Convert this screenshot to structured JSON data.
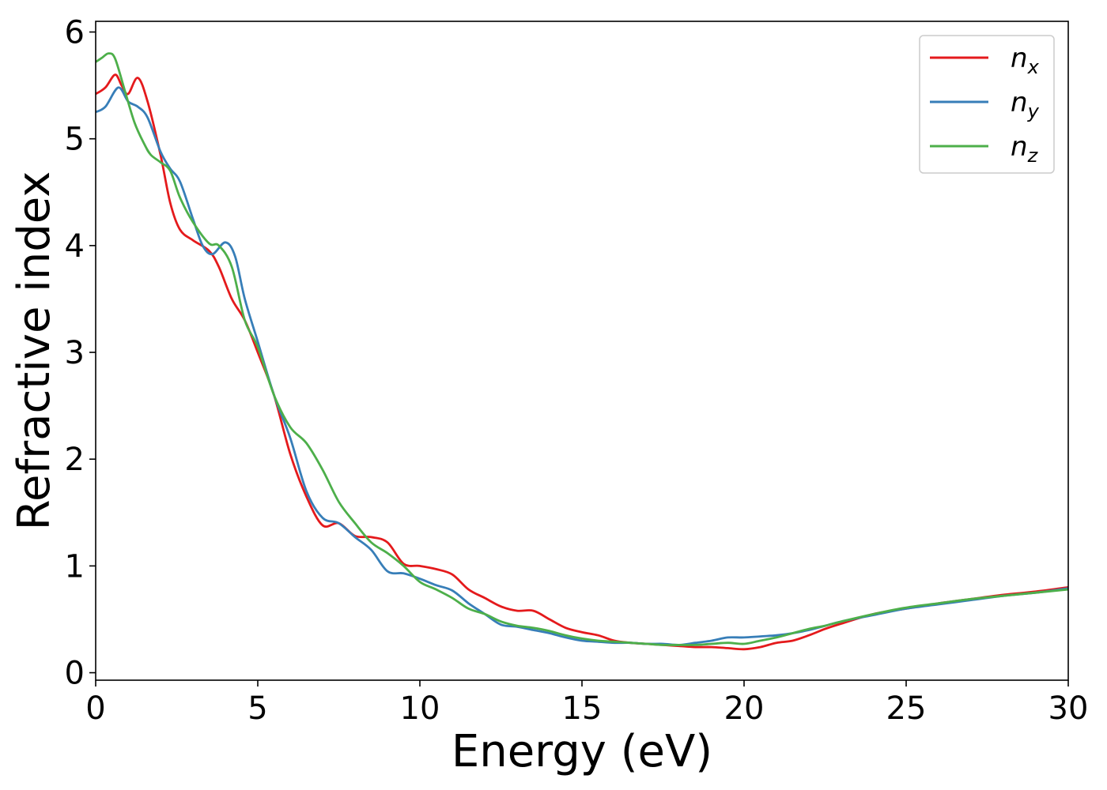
{
  "chart_data": {
    "type": "line",
    "title": "",
    "xlabel": "Energy (eV)",
    "ylabel": "Refractive index",
    "xlim": [
      0,
      30
    ],
    "ylim": [
      -0.07,
      6.1
    ],
    "xticks": [
      0,
      5,
      10,
      15,
      20,
      25,
      30
    ],
    "yticks": [
      0,
      1,
      2,
      3,
      4,
      5,
      6
    ],
    "grid": false,
    "legend_position": "top-right",
    "series": [
      {
        "name": "n",
        "subscript": "x",
        "color": "#e41a1c",
        "x": [
          0,
          0.3,
          0.6,
          0.8,
          1.0,
          1.3,
          1.6,
          2.0,
          2.3,
          2.6,
          3.0,
          3.5,
          3.8,
          4.2,
          4.6,
          5.0,
          5.5,
          6.0,
          6.5,
          7.0,
          7.5,
          8.0,
          8.5,
          9.0,
          9.5,
          10.0,
          10.5,
          11.0,
          11.5,
          12.0,
          12.5,
          13.0,
          13.5,
          14.0,
          14.5,
          15.0,
          15.5,
          16.0,
          16.5,
          17.0,
          17.5,
          18.0,
          18.5,
          19.0,
          19.5,
          20.0,
          20.5,
          21.0,
          21.5,
          22.0,
          22.5,
          23.0,
          24.0,
          25.0,
          26.0,
          27.0,
          28.0,
          29.0,
          30.0
        ],
        "y": [
          5.42,
          5.48,
          5.6,
          5.5,
          5.42,
          5.57,
          5.35,
          4.85,
          4.4,
          4.15,
          4.05,
          3.95,
          3.8,
          3.5,
          3.3,
          3.0,
          2.6,
          2.05,
          1.65,
          1.38,
          1.4,
          1.28,
          1.27,
          1.22,
          1.02,
          1.0,
          0.97,
          0.92,
          0.78,
          0.7,
          0.62,
          0.58,
          0.58,
          0.5,
          0.42,
          0.38,
          0.35,
          0.3,
          0.28,
          0.27,
          0.26,
          0.25,
          0.24,
          0.24,
          0.23,
          0.22,
          0.24,
          0.28,
          0.3,
          0.35,
          0.41,
          0.46,
          0.55,
          0.6,
          0.65,
          0.69,
          0.73,
          0.76,
          0.8
        ]
      },
      {
        "name": "n",
        "subscript": "y",
        "color": "#377eb8",
        "x": [
          0,
          0.3,
          0.7,
          1.0,
          1.3,
          1.6,
          2.0,
          2.3,
          2.6,
          3.0,
          3.3,
          3.6,
          4.0,
          4.3,
          4.6,
          5.0,
          5.5,
          6.0,
          6.5,
          7.0,
          7.5,
          8.0,
          8.5,
          9.0,
          9.5,
          10.0,
          10.5,
          11.0,
          11.5,
          12.0,
          12.5,
          13.0,
          13.5,
          14.0,
          14.5,
          15.0,
          15.5,
          16.0,
          16.5,
          17.0,
          17.5,
          18.0,
          18.5,
          19.0,
          19.5,
          20.0,
          20.5,
          21.0,
          21.5,
          22.0,
          22.5,
          23.0,
          24.0,
          25.0,
          26.0,
          27.0,
          28.0,
          29.0,
          30.0
        ],
        "y": [
          5.25,
          5.3,
          5.48,
          5.35,
          5.3,
          5.2,
          4.88,
          4.72,
          4.6,
          4.25,
          4.0,
          3.92,
          4.03,
          3.9,
          3.5,
          3.1,
          2.6,
          2.2,
          1.7,
          1.45,
          1.4,
          1.27,
          1.15,
          0.95,
          0.93,
          0.88,
          0.82,
          0.77,
          0.65,
          0.55,
          0.45,
          0.43,
          0.4,
          0.37,
          0.33,
          0.3,
          0.29,
          0.28,
          0.28,
          0.27,
          0.27,
          0.26,
          0.28,
          0.3,
          0.33,
          0.33,
          0.34,
          0.35,
          0.37,
          0.4,
          0.44,
          0.48,
          0.54,
          0.6,
          0.64,
          0.68,
          0.72,
          0.75,
          0.79
        ]
      },
      {
        "name": "n",
        "subscript": "z",
        "color": "#4daf4a",
        "x": [
          0,
          0.2,
          0.4,
          0.6,
          0.9,
          1.2,
          1.5,
          1.7,
          2.0,
          2.3,
          2.6,
          3.0,
          3.5,
          3.8,
          4.2,
          4.6,
          5.0,
          5.5,
          6.0,
          6.5,
          7.0,
          7.5,
          8.0,
          8.5,
          9.0,
          9.5,
          10.0,
          10.5,
          11.0,
          11.5,
          12.0,
          12.5,
          13.0,
          13.5,
          14.0,
          14.5,
          15.0,
          15.5,
          16.0,
          16.5,
          17.0,
          17.5,
          18.0,
          18.5,
          19.0,
          19.5,
          20.0,
          20.5,
          21.0,
          21.5,
          22.0,
          22.5,
          23.0,
          24.0,
          25.0,
          26.0,
          27.0,
          28.0,
          29.0,
          30.0
        ],
        "y": [
          5.72,
          5.76,
          5.8,
          5.75,
          5.45,
          5.15,
          4.95,
          4.85,
          4.78,
          4.7,
          4.45,
          4.22,
          4.02,
          4.0,
          3.8,
          3.3,
          3.05,
          2.6,
          2.3,
          2.15,
          1.9,
          1.6,
          1.4,
          1.22,
          1.12,
          1.0,
          0.85,
          0.78,
          0.7,
          0.6,
          0.55,
          0.48,
          0.44,
          0.42,
          0.39,
          0.35,
          0.32,
          0.3,
          0.29,
          0.28,
          0.27,
          0.26,
          0.26,
          0.26,
          0.27,
          0.28,
          0.27,
          0.3,
          0.33,
          0.37,
          0.41,
          0.44,
          0.48,
          0.55,
          0.61,
          0.65,
          0.69,
          0.72,
          0.75,
          0.78
        ]
      }
    ]
  }
}
